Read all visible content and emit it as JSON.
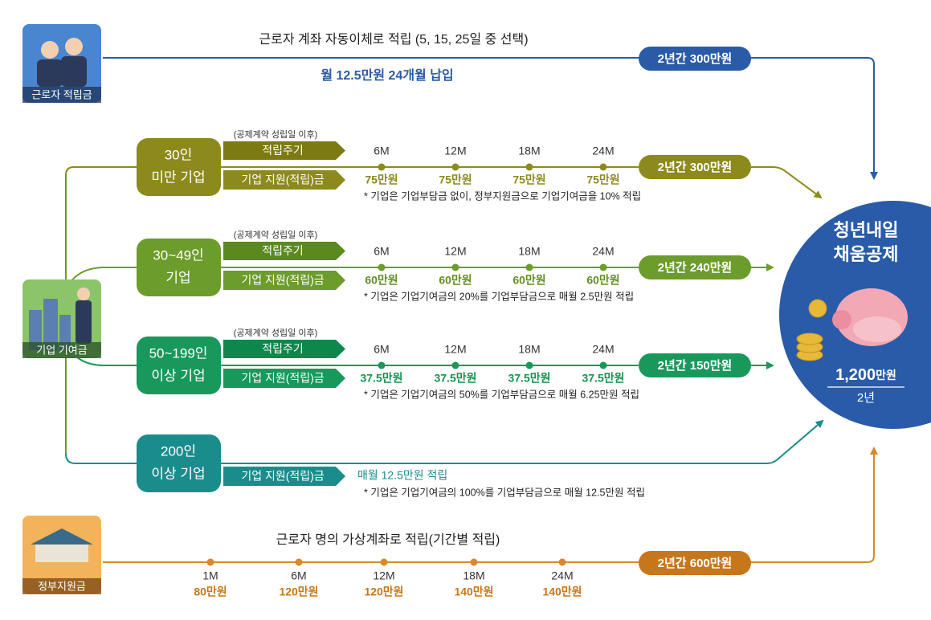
{
  "worker": {
    "label": "근로자 적립금",
    "description": "근로자 계좌 자동이체로 적립 (5, 15, 25일 중 선택)",
    "monthly": "월 12.5만원 24개월 납입",
    "total": "2년간 300만원"
  },
  "company": {
    "label": "기업 기여금"
  },
  "tiers": [
    {
      "name": [
        "30인",
        "미만 기업"
      ],
      "note": "(공제계약 성립일 이후)",
      "cycle_label": "적립주기",
      "support_label": "기업 지원(적립)금",
      "periods": [
        "6M",
        "12M",
        "18M",
        "24M"
      ],
      "amounts": [
        "75만원",
        "75만원",
        "75만원",
        "75만원"
      ],
      "footnote": "* 기업은 기업부담금 없이, 정부지원금으로 기업기여금을 10% 적립",
      "total": "2년간 300만원"
    },
    {
      "name": [
        "30~49인",
        "기업"
      ],
      "note": "(공제계약 성립일 이후)",
      "cycle_label": "적립주기",
      "support_label": "기업 지원(적립)금",
      "periods": [
        "6M",
        "12M",
        "18M",
        "24M"
      ],
      "amounts": [
        "60만원",
        "60만원",
        "60만원",
        "60만원"
      ],
      "footnote": "* 기업은 기업기여금의 20%를 기업부담금으로 매월 2.5만원 적립",
      "total": "2년간 240만원"
    },
    {
      "name": [
        "50~199인",
        "이상 기업"
      ],
      "note": "(공제계약 성립일 이후)",
      "cycle_label": "적립주기",
      "support_label": "기업 지원(적립)금",
      "periods": [
        "6M",
        "12M",
        "18M",
        "24M"
      ],
      "amounts": [
        "37.5만원",
        "37.5만원",
        "37.5만원",
        "37.5만원"
      ],
      "footnote": "* 기업은 기업기여금의 50%를 기업부담금으로 매월 6.25만원 적립",
      "total": "2년간 150만원"
    },
    {
      "name": [
        "200인",
        "이상 기업"
      ],
      "support_label": "기업 지원(적립)금",
      "monthly": "매월 12.5만원 적립",
      "footnote": "* 기업은 기업기여금의 100%를 기업부담금으로 매월 12.5만원 적립"
    }
  ],
  "government": {
    "label": "정부지원금",
    "description": "근로자 명의 가상계좌로 적립(기간별 적립)",
    "periods": [
      "1M",
      "6M",
      "12M",
      "18M",
      "24M"
    ],
    "amounts": [
      "80만원",
      "120만원",
      "120만원",
      "140만원",
      "140만원"
    ],
    "total": "2년간 600만원"
  },
  "product": {
    "title": [
      "청년내일",
      "채움공제"
    ],
    "amount": "1,200",
    "amount_unit": "만원",
    "duration": "2년"
  }
}
